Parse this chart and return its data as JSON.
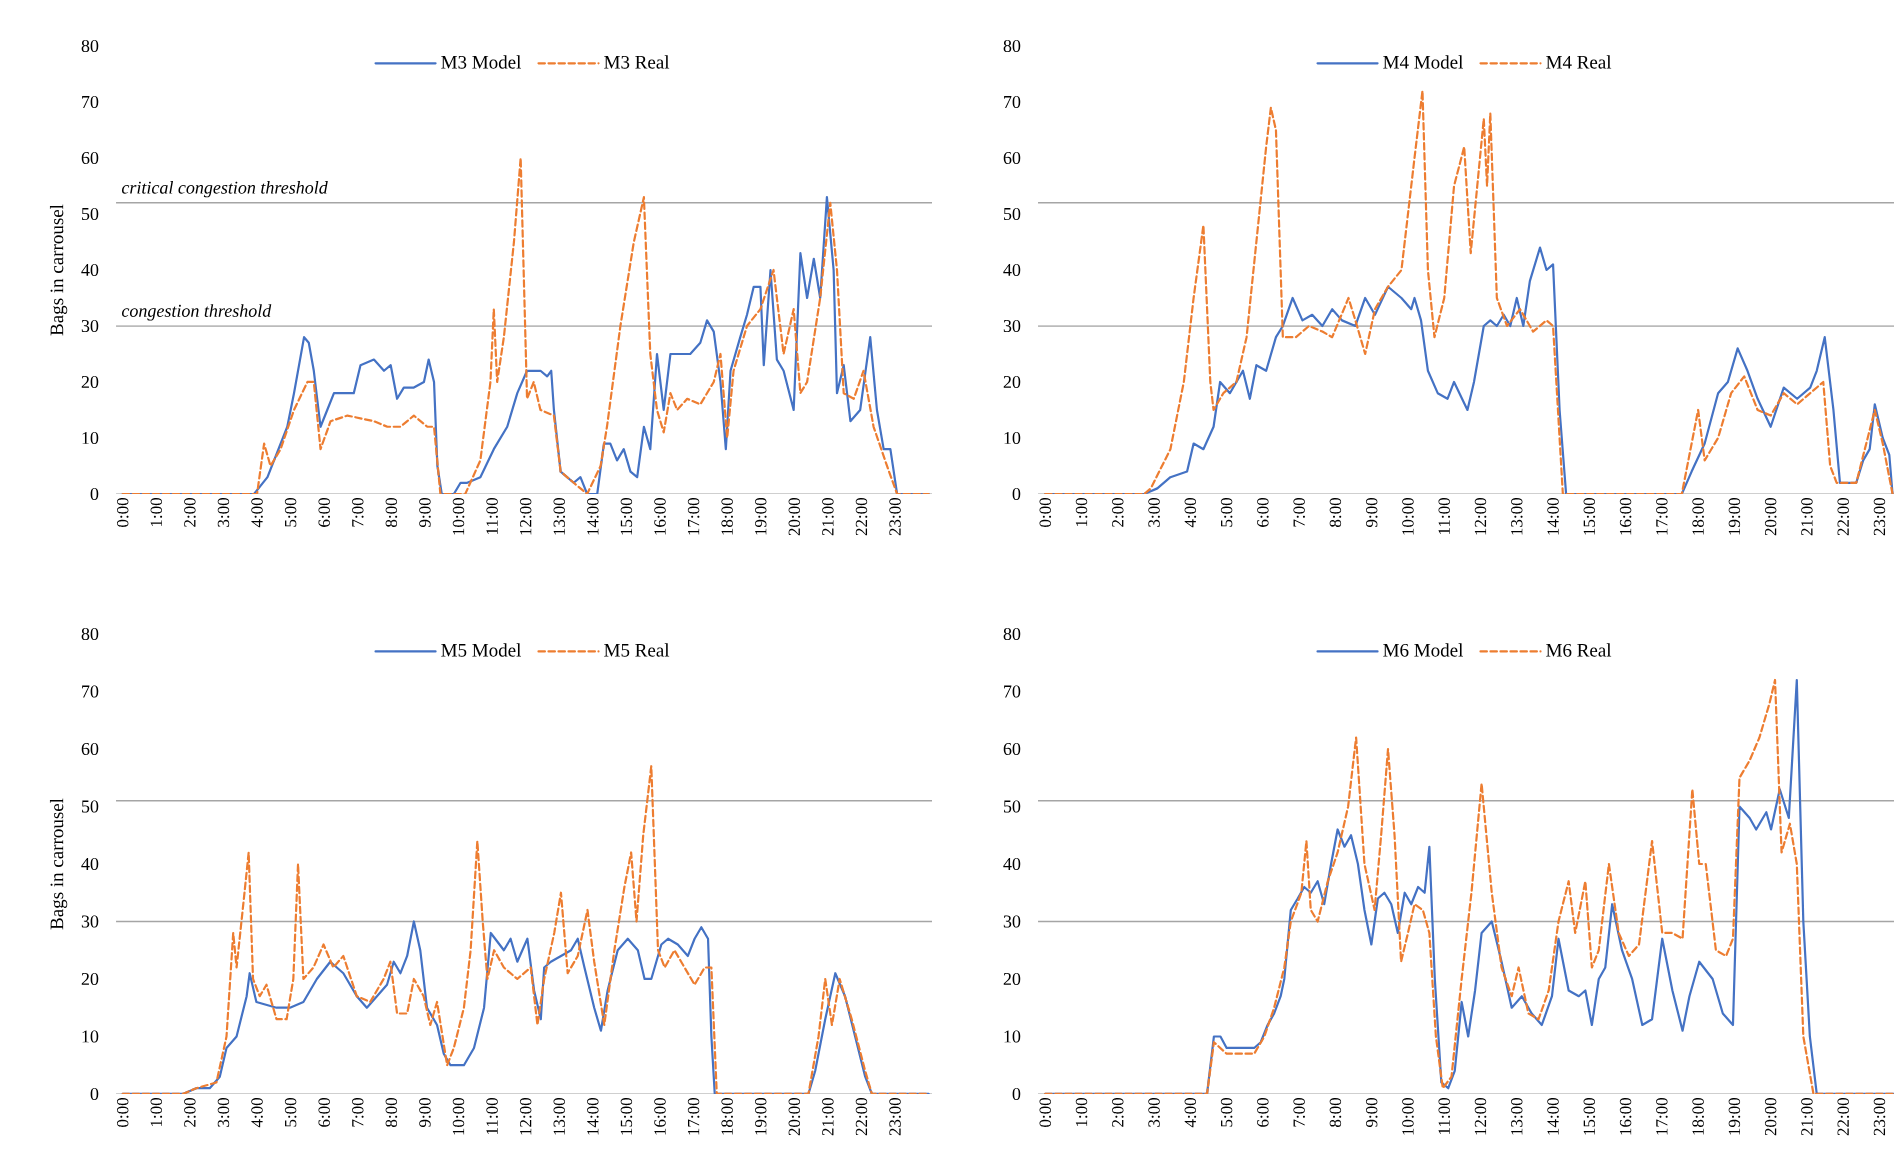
{
  "chart_data": [
    {
      "type": "line",
      "ylabel": "Bags in carrousel",
      "legend": "top",
      "xlim": [
        -0.2,
        24.1
      ],
      "ylim": [
        0,
        80
      ],
      "yticks": [
        0,
        10,
        20,
        30,
        40,
        50,
        60,
        70,
        80
      ],
      "xticks": [
        {
          "value": 0,
          "label": "0:00"
        },
        {
          "value": 1,
          "label": "1:00"
        },
        {
          "value": 2,
          "label": "2:00"
        },
        {
          "value": 3,
          "label": "3:00"
        },
        {
          "value": 4,
          "label": "4:00"
        },
        {
          "value": 5,
          "label": "5:00"
        },
        {
          "value": 6,
          "label": "6:00"
        },
        {
          "value": 7,
          "label": "7:00"
        },
        {
          "value": 8,
          "label": "8:00"
        },
        {
          "value": 9,
          "label": "9:00"
        },
        {
          "value": 10,
          "label": "10:00"
        },
        {
          "value": 11,
          "label": "11:00"
        },
        {
          "value": 12,
          "label": "12:00"
        },
        {
          "value": 13,
          "label": "13:00"
        },
        {
          "value": 14,
          "label": "14:00"
        },
        {
          "value": 15,
          "label": "15:00"
        },
        {
          "value": 16,
          "label": "16:00"
        },
        {
          "value": 17,
          "label": "17:00"
        },
        {
          "value": 18,
          "label": "18:00"
        },
        {
          "value": 19,
          "label": "19:00"
        },
        {
          "value": 20,
          "label": "20:00"
        },
        {
          "value": 21,
          "label": "21:00"
        },
        {
          "value": 22,
          "label": "22:00"
        },
        {
          "value": 23,
          "label": "23:00"
        }
      ],
      "ref_lines": [
        {
          "axis": "y",
          "value": 52,
          "label": "critical congestion threshold",
          "color": "#a5a5a5"
        },
        {
          "axis": "y",
          "value": 30,
          "label": "congestion threshold",
          "color": "#a5a5a5"
        }
      ],
      "series": [
        {
          "name": "M3 Model",
          "color": "#4472c4",
          "line_style": "solid",
          "x": [
            0,
            3.91,
            4.31,
            4.9,
            5.1,
            5.4,
            5.54,
            5.69,
            5.89,
            6.09,
            6.29,
            6.88,
            7.08,
            7.48,
            7.78,
            7.98,
            8.17,
            8.37,
            8.67,
            8.97,
            9.11,
            9.27,
            9.37,
            9.5,
            9.86,
            10.06,
            10.26,
            10.65,
            11.05,
            11.45,
            11.75,
            12.04,
            12.44,
            12.64,
            12.76,
            12.84,
            13.04,
            13.43,
            13.63,
            13.83,
            14.13,
            14.33,
            14.52,
            14.72,
            14.92,
            15.12,
            15.32,
            15.52,
            15.71,
            15.91,
            16.11,
            16.31,
            16.61,
            16.9,
            17.2,
            17.4,
            17.6,
            17.8,
            17.96,
            18.1,
            18.39,
            18.59,
            18.79,
            18.99,
            19.09,
            19.29,
            19.48,
            19.68,
            19.98,
            20.18,
            20.38,
            20.58,
            20.77,
            20.97,
            21.17,
            21.27,
            21.47,
            21.67,
            21.96,
            22.26,
            22.46,
            22.66,
            22.86,
            23.06,
            24
          ],
          "values": [
            0,
            0,
            3,
            12,
            18,
            28,
            27,
            22,
            12,
            15,
            18,
            18,
            23,
            24,
            22,
            23,
            17,
            19,
            19,
            20,
            24,
            20,
            5,
            0,
            0,
            2,
            2,
            3,
            8,
            12,
            18,
            22,
            22,
            21,
            22,
            15,
            4,
            2,
            3,
            0,
            0,
            9,
            9,
            6,
            8,
            4,
            3,
            12,
            8,
            25,
            15,
            25,
            25,
            25,
            27,
            31,
            29,
            20,
            8,
            22,
            28,
            32,
            37,
            37,
            23,
            40,
            24,
            22,
            15,
            43,
            35,
            42,
            35,
            53,
            40,
            18,
            23,
            13,
            15,
            28,
            15,
            8,
            8,
            0,
            0
          ]
        },
        {
          "name": "M3 Real",
          "color": "#ed7d31",
          "line_style": "dashed",
          "x": [
            0,
            4.0,
            4.21,
            4.4,
            4.7,
            5.1,
            5.5,
            5.69,
            5.89,
            6.19,
            6.69,
            7.48,
            7.88,
            8.27,
            8.67,
            9.07,
            9.27,
            9.46,
            10.2,
            10.65,
            10.95,
            11.05,
            11.15,
            11.35,
            11.65,
            11.85,
            12.04,
            12.24,
            12.44,
            12.84,
            13.04,
            13.43,
            13.83,
            14.23,
            14.42,
            14.82,
            15.22,
            15.52,
            15.71,
            15.91,
            16.11,
            16.31,
            16.51,
            16.81,
            17.2,
            17.6,
            17.8,
            18.0,
            18.19,
            18.59,
            18.99,
            19.38,
            19.68,
            19.98,
            20.18,
            20.38,
            20.77,
            21.07,
            21.27,
            21.47,
            21.77,
            22.06,
            22.36,
            22.76,
            23.06,
            24
          ],
          "values": [
            0,
            0,
            9,
            5,
            8,
            15,
            20,
            20,
            8,
            13,
            14,
            13,
            12,
            12,
            14,
            12,
            12,
            0,
            0,
            6,
            20,
            33,
            20,
            28,
            45,
            60,
            17,
            20,
            15,
            14,
            4,
            2,
            0,
            5,
            12,
            30,
            45,
            53,
            25,
            15,
            11,
            18,
            15,
            17,
            16,
            20,
            25,
            10,
            22,
            30,
            33,
            40,
            25,
            33,
            18,
            20,
            35,
            52,
            40,
            18,
            17,
            22,
            12,
            5,
            0,
            0
          ]
        }
      ]
    },
    {
      "type": "line",
      "legend": "top",
      "xlim": [
        -0.2,
        23.4
      ],
      "ylim": [
        0,
        80
      ],
      "yticks": [
        0,
        10,
        20,
        30,
        40,
        50,
        60,
        70,
        80
      ],
      "xticks": [
        {
          "value": 0,
          "label": "0:00"
        },
        {
          "value": 1,
          "label": "1:00"
        },
        {
          "value": 2,
          "label": "2:00"
        },
        {
          "value": 3,
          "label": "3:00"
        },
        {
          "value": 4,
          "label": "4:00"
        },
        {
          "value": 5,
          "label": "5:00"
        },
        {
          "value": 6,
          "label": "6:00"
        },
        {
          "value": 7,
          "label": "7:00"
        },
        {
          "value": 8,
          "label": "8:00"
        },
        {
          "value": 9,
          "label": "9:00"
        },
        {
          "value": 10,
          "label": "10:00"
        },
        {
          "value": 11,
          "label": "11:00"
        },
        {
          "value": 12,
          "label": "12:00"
        },
        {
          "value": 13,
          "label": "13:00"
        },
        {
          "value": 14,
          "label": "14:00"
        },
        {
          "value": 15,
          "label": "15:00"
        },
        {
          "value": 16,
          "label": "16:00"
        },
        {
          "value": 17,
          "label": "17:00"
        },
        {
          "value": 18,
          "label": "18:00"
        },
        {
          "value": 19,
          "label": "19:00"
        },
        {
          "value": 20,
          "label": "20:00"
        },
        {
          "value": 21,
          "label": "21:00"
        },
        {
          "value": 22,
          "label": "22:00"
        },
        {
          "value": 23,
          "label": "23:00"
        }
      ],
      "ref_lines": [
        {
          "axis": "y",
          "value": 52,
          "color": "#a5a5a5"
        },
        {
          "axis": "y",
          "value": 30,
          "color": "#a5a5a5"
        }
      ],
      "series": [
        {
          "name": "M4 Model",
          "color": "#4472c4",
          "line_style": "solid",
          "x": [
            0,
            2.73,
            3.09,
            3.45,
            3.91,
            4.09,
            4.36,
            4.64,
            4.82,
            5.09,
            5.45,
            5.64,
            5.82,
            6.09,
            6.36,
            6.55,
            6.82,
            7.09,
            7.36,
            7.64,
            7.91,
            8.18,
            8.55,
            8.82,
            9.09,
            9.45,
            9.82,
            10.09,
            10.18,
            10.36,
            10.55,
            10.82,
            11.09,
            11.27,
            11.64,
            11.82,
            12.09,
            12.27,
            12.45,
            12.64,
            12.82,
            13.0,
            13.18,
            13.36,
            13.64,
            13.82,
            14.0,
            14.18,
            14.36,
            17.55,
            17.82,
            18.18,
            18.55,
            18.82,
            19.09,
            19.36,
            19.64,
            20.0,
            20.36,
            20.73,
            21.09,
            21.27,
            21.49,
            21.73,
            21.91,
            22.36,
            22.55,
            22.73,
            22.87,
            23.09,
            23.27,
            23.36
          ],
          "values": [
            0,
            0,
            1,
            3,
            4,
            9,
            8,
            12,
            20,
            18,
            22,
            17,
            23,
            22,
            28,
            30,
            35,
            31,
            32,
            30,
            33,
            31,
            30,
            35,
            32,
            37,
            35,
            33,
            35,
            31,
            22,
            18,
            17,
            20,
            15,
            20,
            30,
            31,
            30,
            32,
            30,
            35,
            30,
            38,
            44,
            40,
            41,
            15,
            0,
            0,
            4,
            9,
            18,
            20,
            26,
            22,
            17,
            12,
            19,
            17,
            19,
            22,
            28,
            15,
            2,
            2,
            6,
            8,
            16,
            10,
            7,
            0
          ]
        },
        {
          "name": "M4 Real",
          "color": "#ed7d31",
          "line_style": "dashed",
          "x": [
            0,
            2.73,
            2.91,
            3.45,
            3.82,
            4.09,
            4.36,
            4.55,
            4.64,
            4.91,
            5.27,
            5.55,
            5.82,
            6.09,
            6.22,
            6.36,
            6.55,
            6.91,
            7.27,
            7.64,
            7.91,
            8.36,
            8.55,
            8.82,
            9.09,
            9.45,
            9.82,
            10.18,
            10.4,
            10.55,
            10.73,
            11.0,
            11.27,
            11.55,
            11.73,
            11.91,
            12.09,
            12.18,
            12.27,
            12.45,
            12.73,
            13.09,
            13.45,
            13.82,
            14.0,
            14.18,
            14.27,
            17.55,
            18.0,
            18.18,
            18.55,
            18.91,
            19.27,
            19.64,
            20.0,
            20.36,
            20.73,
            21.09,
            21.45,
            21.64,
            21.82,
            22.36,
            22.87,
            23.09,
            23.36
          ],
          "values": [
            0,
            0,
            1,
            8,
            20,
            35,
            48,
            20,
            15,
            18,
            20,
            28,
            45,
            62,
            69,
            65,
            28,
            28,
            30,
            29,
            28,
            35,
            31,
            25,
            33,
            37,
            40,
            60,
            72,
            40,
            28,
            35,
            55,
            62,
            43,
            55,
            67,
            55,
            68,
            35,
            30,
            33,
            29,
            31,
            30,
            10,
            0,
            0,
            15,
            6,
            10,
            18,
            21,
            15,
            14,
            18,
            16,
            18,
            20,
            5,
            2,
            2,
            15,
            9,
            0
          ]
        }
      ]
    },
    {
      "type": "line",
      "ylabel": "Bags in carrousel",
      "legend": "top",
      "xlim": [
        -0.2,
        24.1
      ],
      "ylim": [
        0,
        80
      ],
      "yticks": [
        0,
        10,
        20,
        30,
        40,
        50,
        60,
        70,
        80
      ],
      "xticks": [
        {
          "value": 0,
          "label": "0:00"
        },
        {
          "value": 1,
          "label": "1:00"
        },
        {
          "value": 2,
          "label": "2:00"
        },
        {
          "value": 3,
          "label": "3:00"
        },
        {
          "value": 4,
          "label": "4:00"
        },
        {
          "value": 5,
          "label": "5:00"
        },
        {
          "value": 6,
          "label": "6:00"
        },
        {
          "value": 7,
          "label": "7:00"
        },
        {
          "value": 8,
          "label": "8:00"
        },
        {
          "value": 9,
          "label": "9:00"
        },
        {
          "value": 10,
          "label": "10:00"
        },
        {
          "value": 11,
          "label": "11:00"
        },
        {
          "value": 12,
          "label": "12:00"
        },
        {
          "value": 13,
          "label": "13:00"
        },
        {
          "value": 14,
          "label": "14:00"
        },
        {
          "value": 15,
          "label": "15:00"
        },
        {
          "value": 16,
          "label": "16:00"
        },
        {
          "value": 17,
          "label": "17:00"
        },
        {
          "value": 18,
          "label": "18:00"
        },
        {
          "value": 19,
          "label": "19:00"
        },
        {
          "value": 20,
          "label": "20:00"
        },
        {
          "value": 21,
          "label": "21:00"
        },
        {
          "value": 22,
          "label": "22:00"
        },
        {
          "value": 23,
          "label": "23:00"
        }
      ],
      "ref_lines": [
        {
          "axis": "y",
          "value": 51,
          "color": "#a5a5a5"
        },
        {
          "axis": "y",
          "value": 30,
          "color": "#a5a5a5"
        }
      ],
      "series": [
        {
          "name": "M5 Model",
          "color": "#4472c4",
          "line_style": "solid",
          "x": [
            0,
            1.79,
            2.19,
            2.59,
            2.89,
            3.09,
            3.39,
            3.69,
            3.78,
            3.98,
            4.58,
            4.98,
            5.38,
            5.78,
            6.18,
            6.57,
            6.97,
            7.27,
            7.57,
            7.87,
            8.07,
            8.27,
            8.47,
            8.67,
            8.86,
            9.06,
            9.36,
            9.56,
            9.76,
            10.16,
            10.46,
            10.76,
            10.96,
            11.35,
            11.55,
            11.75,
            12.05,
            12.25,
            12.45,
            12.55,
            12.75,
            13.05,
            13.35,
            13.55,
            13.75,
            14.04,
            14.24,
            14.44,
            14.74,
            15.04,
            15.34,
            15.54,
            15.74,
            16.04,
            16.24,
            16.53,
            16.83,
            17.03,
            17.23,
            17.43,
            17.53,
            17.63,
            20.42,
            20.62,
            20.92,
            21.22,
            21.51,
            21.81,
            22.11,
            22.31,
            24
          ],
          "values": [
            0,
            0,
            1,
            1,
            3,
            8,
            10,
            17,
            21,
            16,
            15,
            15,
            16,
            20,
            23,
            21,
            17,
            15,
            17,
            19,
            23,
            21,
            24,
            30,
            25,
            15,
            12,
            7,
            5,
            5,
            8,
            15,
            28,
            25,
            27,
            23,
            27,
            18,
            13,
            22,
            23,
            24,
            25,
            27,
            22,
            15,
            11,
            18,
            25,
            27,
            25,
            20,
            20,
            26,
            27,
            26,
            24,
            27,
            29,
            27,
            10,
            0,
            0,
            4,
            13,
            21,
            17,
            10,
            3,
            0,
            0
          ]
        },
        {
          "name": "M5 Real",
          "color": "#ed7d31",
          "line_style": "dashed",
          "x": [
            0,
            1.79,
            2.19,
            2.79,
            3.09,
            3.29,
            3.39,
            3.59,
            3.75,
            3.88,
            4.08,
            4.28,
            4.58,
            4.88,
            5.08,
            5.22,
            5.38,
            5.68,
            5.98,
            6.27,
            6.57,
            6.97,
            7.37,
            7.77,
            7.97,
            8.17,
            8.47,
            8.67,
            8.96,
            9.16,
            9.36,
            9.66,
            9.86,
            10.16,
            10.36,
            10.56,
            10.72,
            10.86,
            11.06,
            11.35,
            11.75,
            12.15,
            12.35,
            12.55,
            12.85,
            13.05,
            13.25,
            13.55,
            13.84,
            14.04,
            14.34,
            14.64,
            14.94,
            15.14,
            15.3,
            15.5,
            15.74,
            15.94,
            16.14,
            16.43,
            16.73,
            17.03,
            17.33,
            17.53,
            17.69,
            20.42,
            20.72,
            20.92,
            21.12,
            21.35,
            21.71,
            22.11,
            22.31,
            24
          ],
          "values": [
            0,
            0,
            1,
            2,
            10,
            28,
            22,
            33,
            42,
            20,
            17,
            19,
            13,
            13,
            20,
            40,
            20,
            22,
            26,
            22,
            24,
            17,
            16,
            20,
            23,
            14,
            14,
            20,
            17,
            12,
            16,
            5,
            8,
            15,
            25,
            44,
            30,
            20,
            25,
            22,
            20,
            22,
            12,
            20,
            28,
            35,
            21,
            24,
            32,
            23,
            12,
            25,
            36,
            42,
            30,
            45,
            57,
            25,
            22,
            25,
            22,
            19,
            22,
            22,
            0,
            0,
            10,
            20,
            12,
            20,
            13,
            4,
            0,
            0
          ]
        }
      ]
    },
    {
      "type": "line",
      "legend": "top",
      "xlim": [
        -0.2,
        23.4
      ],
      "ylim": [
        0,
        80
      ],
      "yticks": [
        0,
        10,
        20,
        30,
        40,
        50,
        60,
        70,
        80
      ],
      "xticks": [
        {
          "value": 0,
          "label": "0:00"
        },
        {
          "value": 1,
          "label": "1:00"
        },
        {
          "value": 2,
          "label": "2:00"
        },
        {
          "value": 3,
          "label": "3:00"
        },
        {
          "value": 4,
          "label": "4:00"
        },
        {
          "value": 5,
          "label": "5:00"
        },
        {
          "value": 6,
          "label": "6:00"
        },
        {
          "value": 7,
          "label": "7:00"
        },
        {
          "value": 8,
          "label": "8:00"
        },
        {
          "value": 9,
          "label": "9:00"
        },
        {
          "value": 10,
          "label": "10:00"
        },
        {
          "value": 11,
          "label": "11:00"
        },
        {
          "value": 12,
          "label": "12:00"
        },
        {
          "value": 13,
          "label": "13:00"
        },
        {
          "value": 14,
          "label": "14:00"
        },
        {
          "value": 15,
          "label": "15:00"
        },
        {
          "value": 16,
          "label": "16:00"
        },
        {
          "value": 17,
          "label": "17:00"
        },
        {
          "value": 18,
          "label": "18:00"
        },
        {
          "value": 19,
          "label": "19:00"
        },
        {
          "value": 20,
          "label": "20:00"
        },
        {
          "value": 21,
          "label": "21:00"
        },
        {
          "value": 22,
          "label": "22:00"
        },
        {
          "value": 23,
          "label": "23:00"
        }
      ],
      "ref_lines": [
        {
          "axis": "y",
          "value": 51,
          "color": "#a5a5a5"
        },
        {
          "axis": "y",
          "value": 30,
          "color": "#a5a5a5"
        }
      ],
      "series": [
        {
          "name": "M6 Model",
          "color": "#4472c4",
          "line_style": "solid",
          "x": [
            0,
            4.46,
            4.65,
            4.83,
            5.0,
            5.39,
            5.76,
            5.94,
            6.13,
            6.31,
            6.49,
            6.59,
            6.77,
            6.96,
            7.14,
            7.32,
            7.51,
            7.69,
            7.88,
            8.06,
            8.25,
            8.43,
            8.62,
            8.8,
            8.99,
            9.17,
            9.35,
            9.54,
            9.72,
            9.91,
            10.09,
            10.28,
            10.46,
            10.59,
            10.74,
            10.92,
            11.11,
            11.29,
            11.48,
            11.66,
            11.85,
            12.03,
            12.31,
            12.58,
            12.86,
            13.14,
            13.41,
            13.69,
            13.97,
            14.15,
            14.43,
            14.71,
            14.89,
            15.07,
            15.26,
            15.44,
            15.63,
            15.9,
            16.18,
            16.46,
            16.73,
            17.01,
            17.29,
            17.57,
            17.76,
            18.03,
            18.4,
            18.68,
            18.96,
            19.14,
            19.42,
            19.6,
            19.88,
            20.01,
            20.25,
            20.5,
            20.72,
            20.9,
            21.08,
            21.27,
            23.4
          ],
          "values": [
            0,
            0,
            10,
            10,
            8,
            8,
            8,
            9,
            12,
            14,
            17,
            20,
            32,
            34,
            36,
            35,
            37,
            33,
            40,
            46,
            43,
            45,
            40,
            32,
            26,
            34,
            35,
            33,
            28,
            35,
            33,
            36,
            35,
            43,
            20,
            2,
            1,
            4,
            16,
            10,
            18,
            28,
            30,
            23,
            15,
            17,
            14,
            12,
            17,
            27,
            18,
            17,
            18,
            12,
            20,
            22,
            33,
            25,
            20,
            12,
            13,
            27,
            18,
            11,
            17,
            23,
            20,
            14,
            12,
            50,
            48,
            46,
            49,
            46,
            53,
            48,
            72,
            30,
            10,
            0,
            0
          ]
        },
        {
          "name": "M6 Real",
          "color": "#ed7d31",
          "line_style": "dashed",
          "x": [
            0,
            4.46,
            4.65,
            5.0,
            5.39,
            5.76,
            6.04,
            6.31,
            6.59,
            6.77,
            7.06,
            7.2,
            7.32,
            7.51,
            7.79,
            8.06,
            8.35,
            8.57,
            8.8,
            9.08,
            9.26,
            9.45,
            9.63,
            9.81,
            10.0,
            10.18,
            10.41,
            10.59,
            10.77,
            10.96,
            11.2,
            11.48,
            11.75,
            12.03,
            12.31,
            12.58,
            12.86,
            13.05,
            13.32,
            13.6,
            13.88,
            14.15,
            14.43,
            14.61,
            14.89,
            15.07,
            15.26,
            15.54,
            15.81,
            16.09,
            16.37,
            16.73,
            17.01,
            17.29,
            17.57,
            17.84,
            18.03,
            18.21,
            18.49,
            18.77,
            18.96,
            19.14,
            19.42,
            19.69,
            19.97,
            20.12,
            20.3,
            20.53,
            20.72,
            20.9,
            21.18,
            23.4
          ],
          "values": [
            0,
            0,
            9,
            7,
            7,
            7,
            10,
            15,
            22,
            30,
            35,
            44,
            32,
            30,
            37,
            42,
            50,
            62,
            40,
            32,
            45,
            60,
            45,
            23,
            28,
            33,
            32,
            28,
            10,
            1,
            3,
            20,
            35,
            54,
            35,
            22,
            17,
            22,
            14,
            13,
            18,
            30,
            37,
            28,
            37,
            22,
            25,
            40,
            28,
            24,
            26,
            44,
            28,
            28,
            27,
            53,
            40,
            40,
            25,
            24,
            27,
            55,
            58,
            62,
            68,
            72,
            42,
            47,
            40,
            10,
            0,
            0
          ]
        }
      ]
    }
  ]
}
